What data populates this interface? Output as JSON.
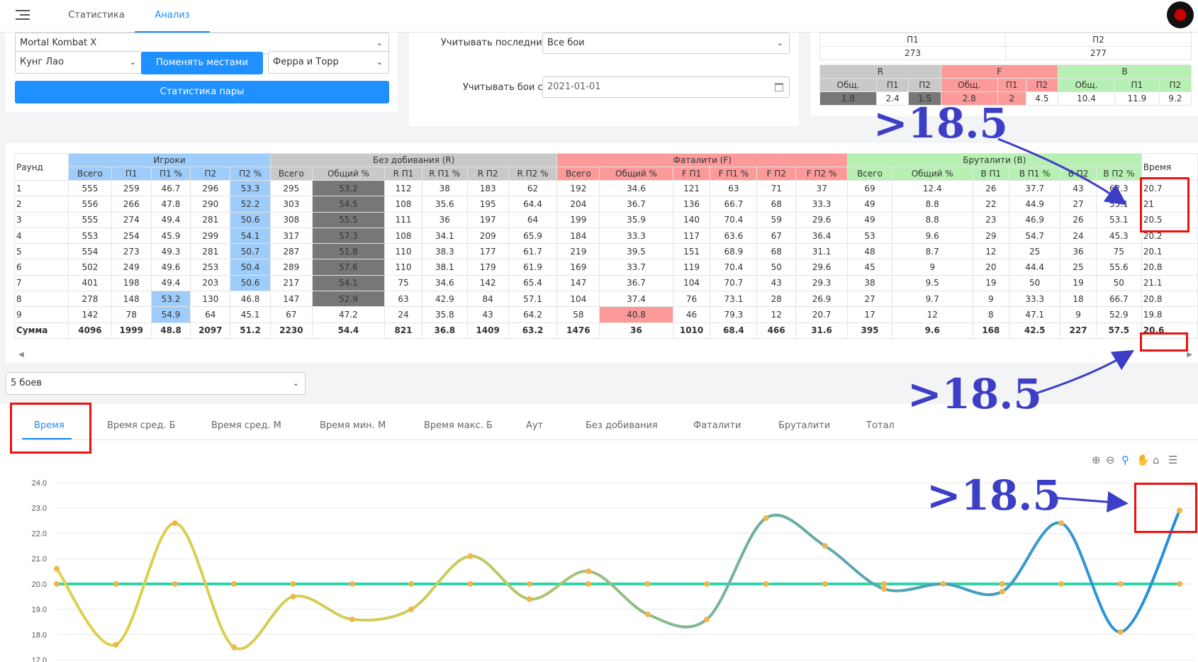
{
  "nav": {
    "tabs": [
      "Статистика",
      "Анализ"
    ],
    "active": "Анализ"
  },
  "left_panel": {
    "game": "Mortal Kombat X",
    "player1": "Кунг Лао",
    "player2": "Ферра и Торр",
    "swap_label": "Поменять местами",
    "pair_stats_label": "Статистика пары"
  },
  "filters": {
    "last_label": "Учитывать последние:",
    "last_value": "Все бои",
    "from_label": "Учитывать бои с:",
    "from_value": "2021-01-01"
  },
  "summary": {
    "p_headers": [
      "П1",
      "П2"
    ],
    "p_values": [
      "273",
      "277"
    ],
    "groups": [
      "R",
      "F",
      "B"
    ],
    "sub_headers": [
      "Общ.",
      "П1",
      "П2",
      "Общ.",
      "П1",
      "П2",
      "Общ.",
      "П1",
      "П2"
    ],
    "values": [
      "1.8",
      "2.4",
      "1.5",
      "2.8",
      "2",
      "4.5",
      "10.4",
      "11.9",
      "9.2"
    ]
  },
  "table": {
    "round_header": "Раунд",
    "time_header": "Время",
    "groups": [
      "Игроки",
      "Без добивания (R)",
      "Фаталити (F)",
      "Бруталити (B)"
    ],
    "columns": [
      "Всего",
      "П1",
      "П1 %",
      "П2",
      "П2 %",
      "Всего",
      "Общий %",
      "R П1",
      "R П1 %",
      "R П2",
      "R П2 %",
      "Всего",
      "Общий %",
      "F П1",
      "F П1 %",
      "F П2",
      "F П2 %",
      "Всего",
      "Общий %",
      "В П1",
      "В П1 %",
      "В П2",
      "В П2 %"
    ],
    "rows": [
      [
        "1",
        "555",
        "259",
        "46.7",
        "296",
        "53.3",
        "295",
        "53.2",
        "112",
        "38",
        "183",
        "62",
        "192",
        "34.6",
        "121",
        "63",
        "71",
        "37",
        "69",
        "12.4",
        "26",
        "37.7",
        "43",
        "62.3",
        "20.7"
      ],
      [
        "2",
        "556",
        "266",
        "47.8",
        "290",
        "52.2",
        "303",
        "54.5",
        "108",
        "35.6",
        "195",
        "64.4",
        "204",
        "36.7",
        "136",
        "66.7",
        "68",
        "33.3",
        "49",
        "8.8",
        "22",
        "44.9",
        "27",
        "55.1",
        "21"
      ],
      [
        "3",
        "555",
        "274",
        "49.4",
        "281",
        "50.6",
        "308",
        "55.5",
        "111",
        "36",
        "197",
        "64",
        "199",
        "35.9",
        "140",
        "70.4",
        "59",
        "29.6",
        "49",
        "8.8",
        "23",
        "46.9",
        "26",
        "53.1",
        "20.5"
      ],
      [
        "4",
        "553",
        "254",
        "45.9",
        "299",
        "54.1",
        "317",
        "57.3",
        "108",
        "34.1",
        "209",
        "65.9",
        "184",
        "33.3",
        "117",
        "63.6",
        "67",
        "36.4",
        "53",
        "9.6",
        "29",
        "54.7",
        "24",
        "45.3",
        "20.2"
      ],
      [
        "5",
        "554",
        "273",
        "49.3",
        "281",
        "50.7",
        "287",
        "51.8",
        "110",
        "38.3",
        "177",
        "61.7",
        "219",
        "39.5",
        "151",
        "68.9",
        "68",
        "31.1",
        "48",
        "8.7",
        "12",
        "25",
        "36",
        "75",
        "20.1"
      ],
      [
        "6",
        "502",
        "249",
        "49.6",
        "253",
        "50.4",
        "289",
        "57.6",
        "110",
        "38.1",
        "179",
        "61.9",
        "169",
        "33.7",
        "119",
        "70.4",
        "50",
        "29.6",
        "45",
        "9",
        "20",
        "44.4",
        "25",
        "55.6",
        "20.8"
      ],
      [
        "7",
        "401",
        "198",
        "49.4",
        "203",
        "50.6",
        "217",
        "54.1",
        "75",
        "34.6",
        "142",
        "65.4",
        "147",
        "36.7",
        "104",
        "70.7",
        "43",
        "29.3",
        "38",
        "9.5",
        "19",
        "50",
        "19",
        "50",
        "21.1"
      ],
      [
        "8",
        "278",
        "148",
        "53.2",
        "130",
        "46.8",
        "147",
        "52.9",
        "63",
        "42.9",
        "84",
        "57.1",
        "104",
        "37.4",
        "76",
        "73.1",
        "28",
        "26.9",
        "27",
        "9.7",
        "9",
        "33.3",
        "18",
        "66.7",
        "20.8"
      ],
      [
        "9",
        "142",
        "78",
        "54.9",
        "64",
        "45.1",
        "67",
        "47.2",
        "24",
        "35.8",
        "43",
        "64.2",
        "58",
        "40.8",
        "46",
        "79.3",
        "12",
        "20.7",
        "17",
        "12",
        "8",
        "47.1",
        "9",
        "52.9",
        "19.8"
      ],
      [
        "Сумма",
        "4096",
        "1999",
        "48.8",
        "2097",
        "51.2",
        "2230",
        "54.4",
        "821",
        "36.8",
        "1409",
        "63.2",
        "1476",
        "36",
        "1010",
        "68.4",
        "466",
        "31.6",
        "395",
        "9.6",
        "168",
        "42.5",
        "227",
        "57.5",
        "20.6"
      ]
    ]
  },
  "fights_select": "5 боев",
  "chart_tabs": [
    "Время",
    "Время сред. Б",
    "Время сред. М",
    "Время мин. М",
    "Время макс. Б",
    "Аут",
    "Без добивания",
    "Фаталити",
    "Бруталити",
    "Тотал"
  ],
  "chart_tools": [
    "zoom-in-icon",
    "zoom-out-icon",
    "magnifier-icon",
    "pan-icon",
    "home-icon",
    "menu-icon"
  ],
  "annotations": [
    ">18.5",
    ">18.5",
    ">18.5"
  ],
  "colors": {
    "accent": "#1a8cff",
    "red_box": "#e11111",
    "annotation": "#3c3fc6"
  },
  "chart_data": {
    "type": "line",
    "ylim": [
      17.0,
      24.0
    ],
    "yticks": [
      "24.0",
      "23.0",
      "22.0",
      "21.0",
      "20.0",
      "19.0",
      "18.0",
      "17.0"
    ],
    "x": [
      1,
      2,
      3,
      4,
      5,
      6,
      7,
      8,
      9,
      10,
      11,
      12,
      13,
      14,
      15,
      16,
      17,
      18,
      19,
      20
    ],
    "series": [
      {
        "values": [
          20.6,
          17.6,
          22.4,
          17.5,
          19.5,
          18.6,
          19.0,
          21.1,
          19.4,
          20.5,
          18.8,
          18.6,
          22.6,
          21.5,
          19.8,
          20.0,
          19.7,
          22.4,
          18.1,
          22.9
        ]
      },
      {
        "values": [
          20.0,
          20.0,
          20.0,
          20.0,
          20.0,
          20.0,
          20.0,
          20.0,
          20.0,
          20.0,
          20.0,
          20.0,
          20.0,
          20.0,
          20.0,
          20.0,
          20.0,
          20.0,
          20.0,
          20.0
        ]
      }
    ]
  }
}
